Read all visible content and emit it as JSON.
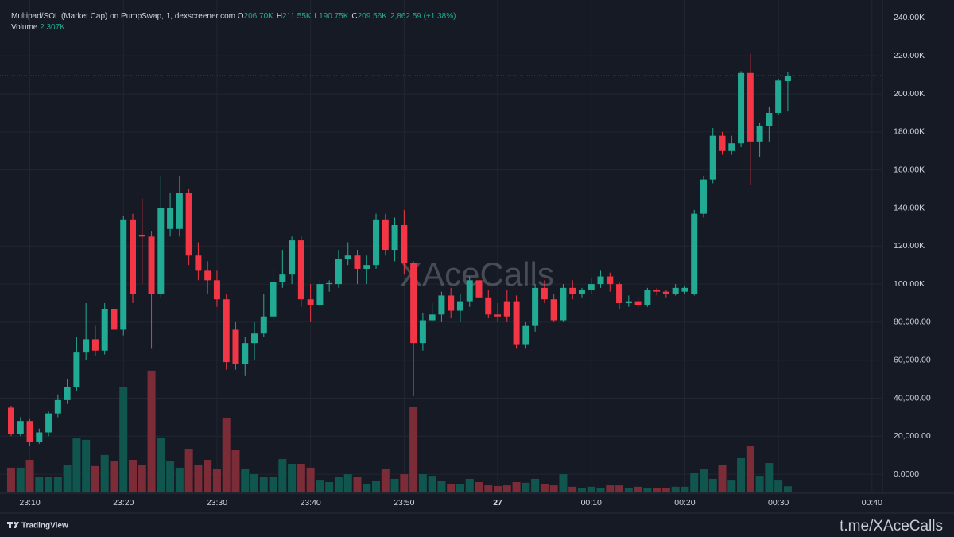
{
  "header": {
    "symbol": "Multipad/SOL (Market Cap) on PumpSwap, 1, dexscreener.com",
    "ohlc": [
      {
        "label": "O",
        "value": "206.70K"
      },
      {
        "label": "H",
        "value": "211.55K"
      },
      {
        "label": "L",
        "value": "190.75K"
      },
      {
        "label": "C",
        "value": "209.56K"
      }
    ],
    "change": "2,862.59 (+1.38%)",
    "volume_label": "Volume",
    "volume_value": "2.307K"
  },
  "chart_data": {
    "type": "candlestick",
    "open": [
      35,
      21,
      28,
      17,
      22,
      32,
      39,
      46,
      64,
      71,
      65,
      87,
      76,
      134,
      126,
      125,
      95,
      129,
      129,
      148,
      115,
      107,
      102,
      92,
      76,
      58,
      69,
      74,
      83,
      101,
      105,
      123,
      92,
      89,
      100,
      100,
      113,
      115,
      108,
      110,
      134,
      118,
      131,
      111,
      69,
      81,
      84,
      94,
      86,
      91,
      102,
      93,
      84,
      91,
      91,
      68,
      78,
      98,
      92,
      81,
      98,
      95,
      97,
      100,
      104,
      100,
      90,
      91,
      89,
      97,
      96,
      95,
      96,
      95,
      137,
      155,
      178,
      170,
      174,
      211,
      175,
      183,
      190,
      206.7
    ],
    "high": [
      36,
      30,
      29,
      24,
      33,
      42,
      50,
      72,
      90,
      78,
      90,
      90,
      136,
      137,
      145,
      128,
      157,
      148,
      157,
      150,
      122,
      112,
      107,
      95,
      80,
      72,
      80,
      95,
      108,
      118,
      125,
      125,
      100,
      102,
      102,
      118,
      122,
      118,
      115,
      137,
      137,
      135,
      139,
      112,
      85,
      90,
      96,
      98,
      95,
      104,
      105,
      97,
      90,
      97,
      94,
      80,
      100,
      102,
      95,
      100,
      102,
      98,
      103,
      107,
      106,
      101,
      94,
      93,
      98,
      98,
      97,
      100,
      99,
      139,
      157,
      182,
      180,
      178,
      212,
      221,
      185,
      193,
      208,
      211.55
    ],
    "low": [
      20,
      20,
      15,
      16,
      20,
      30,
      37,
      44,
      60,
      62,
      63,
      74,
      73,
      90,
      100,
      66,
      93,
      125,
      125,
      110,
      102,
      95,
      88,
      55,
      55,
      52,
      60,
      72,
      80,
      98,
      100,
      88,
      80,
      88,
      96,
      98,
      110,
      100,
      100,
      108,
      115,
      112,
      105,
      41,
      65,
      80,
      80,
      82,
      80,
      88,
      85,
      82,
      80,
      80,
      66,
      66,
      75,
      90,
      80,
      80,
      92,
      93,
      95,
      98,
      96,
      87,
      88,
      87,
      88,
      94,
      93,
      94,
      95,
      94,
      135,
      153,
      168,
      168,
      172,
      152,
      167,
      175,
      189,
      190.75
    ],
    "close": [
      21,
      28,
      17,
      22,
      32,
      39,
      46,
      64,
      71,
      65,
      87,
      76,
      134,
      95,
      125,
      95,
      140,
      140,
      148,
      115,
      107,
      102,
      92,
      59,
      58,
      69,
      74,
      83,
      101,
      105,
      123,
      92,
      89,
      100,
      100.5,
      113,
      115,
      108,
      110,
      134,
      118,
      131,
      111,
      69,
      81,
      84,
      94,
      86,
      91,
      102,
      93,
      84,
      83,
      83,
      68,
      78,
      98,
      92,
      81,
      98,
      95,
      97,
      100,
      104,
      100,
      90,
      91,
      89,
      97,
      96,
      95,
      98,
      98,
      137,
      155,
      178,
      170,
      174,
      211,
      175,
      183,
      190,
      207,
      209.56
    ],
    "volume": [
      10.3,
      10.3,
      13.7,
      6.2,
      6.2,
      6.2,
      11.3,
      22.9,
      22.3,
      11,
      15.8,
      13,
      44.9,
      13.7,
      11.6,
      52.1,
      23.3,
      13,
      10.3,
      18.2,
      11.3,
      13.7,
      9.6,
      31.8,
      17.8,
      9.6,
      7.5,
      6.2,
      6.2,
      14,
      12,
      12,
      10.3,
      5.1,
      4.1,
      6.2,
      7.5,
      6.2,
      3.4,
      4.8,
      9.6,
      5.5,
      7.5,
      36.6,
      7.5,
      6.8,
      4.8,
      3.4,
      3.4,
      5.5,
      4.1,
      2.7,
      2.4,
      2.7,
      4.1,
      3.8,
      5.5,
      3.4,
      2.7,
      7.5,
      2.1,
      1.4,
      2.1,
      1.4,
      2.7,
      2.7,
      1.4,
      2.1,
      1.4,
      1.4,
      1.4,
      2.1,
      2.1,
      7.9,
      9.6,
      5.5,
      11.3,
      5.1,
      14.4,
      19.5,
      6.8,
      12.3,
      5.1,
      2.307
    ],
    "time_labels": [
      "23:10",
      "23:20",
      "23:30",
      "23:40",
      "23:50",
      "27",
      "00:10",
      "00:20",
      "00:30",
      "00:40"
    ],
    "ylim": [
      -10,
      249.4
    ],
    "yticks": [
      {
        "value": 240,
        "label": "240.00K"
      },
      {
        "value": 220,
        "label": "220.00K"
      },
      {
        "value": 200,
        "label": "200.00K"
      },
      {
        "value": 180,
        "label": "180.00K"
      },
      {
        "value": 160,
        "label": "160.00K"
      },
      {
        "value": 140,
        "label": "140.00K"
      },
      {
        "value": 120,
        "label": "120.00K"
      },
      {
        "value": 100,
        "label": "100.00K"
      },
      {
        "value": 80,
        "label": "80,000.00"
      },
      {
        "value": 60,
        "label": "60,000.00"
      },
      {
        "value": 40,
        "label": "40,000.00"
      },
      {
        "value": 20,
        "label": "20,000.00"
      },
      {
        "value": 0,
        "label": "0.0000"
      }
    ],
    "volume_ylim": [
      0,
      211.6
    ],
    "up_color": "#22ab94",
    "down_color": "#f23645",
    "volume_up_color": "#10564f",
    "volume_down_color": "#7c2c37",
    "grid": true
  },
  "watermark": "XAceCalls",
  "footer": {
    "brand": "TradingView",
    "link": "t.me/XAceCalls"
  }
}
